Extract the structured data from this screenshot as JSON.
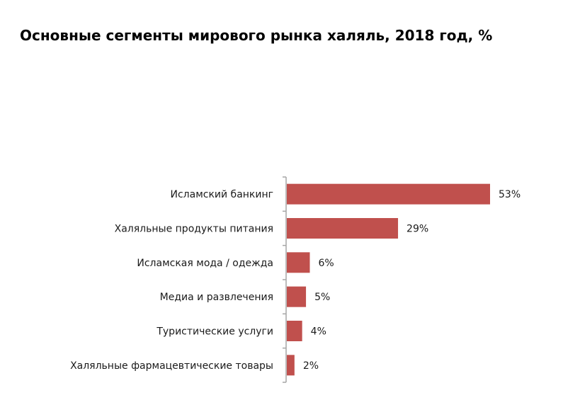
{
  "chart_data": {
    "type": "bar",
    "orientation": "horizontal",
    "title": "Основные сегменты мирового рынка халяль, 2018 год, %",
    "categories": [
      "Исламский банкинг",
      "Халяльные продукты питания",
      "Исламская мода / одежда",
      "Медиа и развлечения",
      "Туристические услуги",
      "Халяльные фармацевтические товары"
    ],
    "values": [
      53,
      29,
      6,
      5,
      4,
      2
    ],
    "value_labels": [
      "53%",
      "29%",
      "6%",
      "5%",
      "4%",
      "2%"
    ],
    "xlabel": "",
    "ylabel": "",
    "xlim": [
      0,
      53
    ],
    "grid": false,
    "legend": "none",
    "bar_color": "#c0504d",
    "axis_color": "#a6a6a6"
  }
}
